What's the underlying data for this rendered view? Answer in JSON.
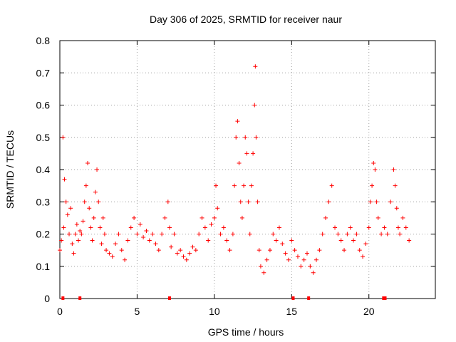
{
  "chart_data": {
    "type": "scatter",
    "title": "Day 306 of 2025, SRMTID for receiver naur",
    "xlabel": "GPS time / hours",
    "ylabel": "SRMTID / TECUs",
    "xlim": [
      0,
      24.3
    ],
    "ylim": [
      0,
      0.8
    ],
    "xticks": [
      0,
      5,
      10,
      15,
      20
    ],
    "xtick_labels": [
      "0",
      "5",
      "10",
      "15",
      "20"
    ],
    "yticks": [
      0,
      0.1,
      0.2,
      0.3,
      0.4,
      0.5,
      0.6,
      0.7,
      0.8
    ],
    "ytick_labels": [
      "0",
      "0.1",
      "0.2",
      "0.3",
      "0.4",
      "0.5",
      "0.6",
      "0.7",
      "0.8"
    ],
    "grid": true,
    "marker": "+",
    "series_color": "#ff0000",
    "series": [
      {
        "name": "SRMTID",
        "x": [
          0.0,
          0.1,
          0.2,
          0.25,
          0.3,
          0.4,
          0.5,
          0.6,
          0.7,
          0.8,
          0.9,
          1.0,
          1.1,
          1.2,
          1.3,
          1.4,
          1.5,
          1.6,
          1.7,
          1.8,
          1.9,
          2.0,
          2.1,
          2.2,
          2.3,
          2.4,
          2.5,
          2.6,
          2.7,
          2.8,
          2.9,
          3.0,
          3.2,
          3.4,
          3.6,
          3.8,
          4.0,
          4.2,
          4.4,
          4.6,
          4.8,
          5.0,
          5.2,
          5.4,
          5.6,
          5.8,
          6.0,
          6.2,
          6.4,
          6.6,
          6.8,
          7.0,
          7.1,
          7.2,
          7.4,
          7.6,
          7.8,
          8.0,
          8.2,
          8.4,
          8.6,
          8.8,
          9.0,
          9.2,
          9.4,
          9.6,
          9.8,
          10.0,
          10.1,
          10.2,
          10.4,
          10.6,
          10.8,
          11.0,
          11.2,
          11.3,
          11.4,
          11.5,
          11.6,
          11.7,
          11.8,
          11.9,
          12.0,
          12.1,
          12.2,
          12.3,
          12.4,
          12.5,
          12.6,
          12.65,
          12.7,
          12.8,
          12.9,
          13.0,
          13.2,
          13.4,
          13.6,
          13.8,
          14.0,
          14.2,
          14.4,
          14.6,
          14.8,
          15.0,
          15.2,
          15.4,
          15.6,
          15.8,
          16.0,
          16.2,
          16.4,
          16.6,
          16.8,
          17.0,
          17.2,
          17.4,
          17.6,
          17.8,
          18.0,
          18.2,
          18.4,
          18.6,
          18.8,
          19.0,
          19.2,
          19.4,
          19.6,
          19.8,
          20.0,
          20.1,
          20.2,
          20.3,
          20.4,
          20.5,
          20.6,
          20.8,
          21.0,
          21.2,
          21.4,
          21.6,
          21.7,
          21.8,
          21.9,
          22.0,
          22.2,
          22.4,
          22.6
        ],
        "y": [
          0.15,
          0.18,
          0.5,
          0.22,
          0.37,
          0.3,
          0.26,
          0.2,
          0.28,
          0.17,
          0.14,
          0.2,
          0.23,
          0.18,
          0.21,
          0.2,
          0.24,
          0.3,
          0.35,
          0.42,
          0.28,
          0.22,
          0.18,
          0.25,
          0.33,
          0.4,
          0.3,
          0.22,
          0.17,
          0.25,
          0.2,
          0.15,
          0.14,
          0.13,
          0.17,
          0.2,
          0.15,
          0.12,
          0.18,
          0.22,
          0.25,
          0.2,
          0.23,
          0.19,
          0.21,
          0.18,
          0.2,
          0.17,
          0.15,
          0.2,
          0.25,
          0.3,
          0.22,
          0.16,
          0.2,
          0.14,
          0.15,
          0.13,
          0.12,
          0.14,
          0.16,
          0.15,
          0.2,
          0.25,
          0.22,
          0.18,
          0.23,
          0.25,
          0.35,
          0.28,
          0.2,
          0.22,
          0.18,
          0.15,
          0.2,
          0.35,
          0.5,
          0.55,
          0.42,
          0.3,
          0.25,
          0.35,
          0.5,
          0.45,
          0.3,
          0.2,
          0.35,
          0.45,
          0.6,
          0.72,
          0.5,
          0.3,
          0.15,
          0.1,
          0.08,
          0.12,
          0.15,
          0.2,
          0.18,
          0.22,
          0.17,
          0.14,
          0.12,
          0.18,
          0.15,
          0.13,
          0.1,
          0.12,
          0.14,
          0.1,
          0.08,
          0.12,
          0.15,
          0.2,
          0.25,
          0.3,
          0.35,
          0.22,
          0.2,
          0.18,
          0.15,
          0.2,
          0.22,
          0.18,
          0.2,
          0.15,
          0.13,
          0.17,
          0.22,
          0.3,
          0.35,
          0.42,
          0.4,
          0.3,
          0.25,
          0.2,
          0.22,
          0.2,
          0.3,
          0.4,
          0.35,
          0.28,
          0.22,
          0.2,
          0.25,
          0.22,
          0.18
        ]
      }
    ],
    "gap_markers_x": [
      0.2,
      1.3,
      7.1,
      15.1,
      16.1,
      20.95,
      21.05
    ]
  }
}
